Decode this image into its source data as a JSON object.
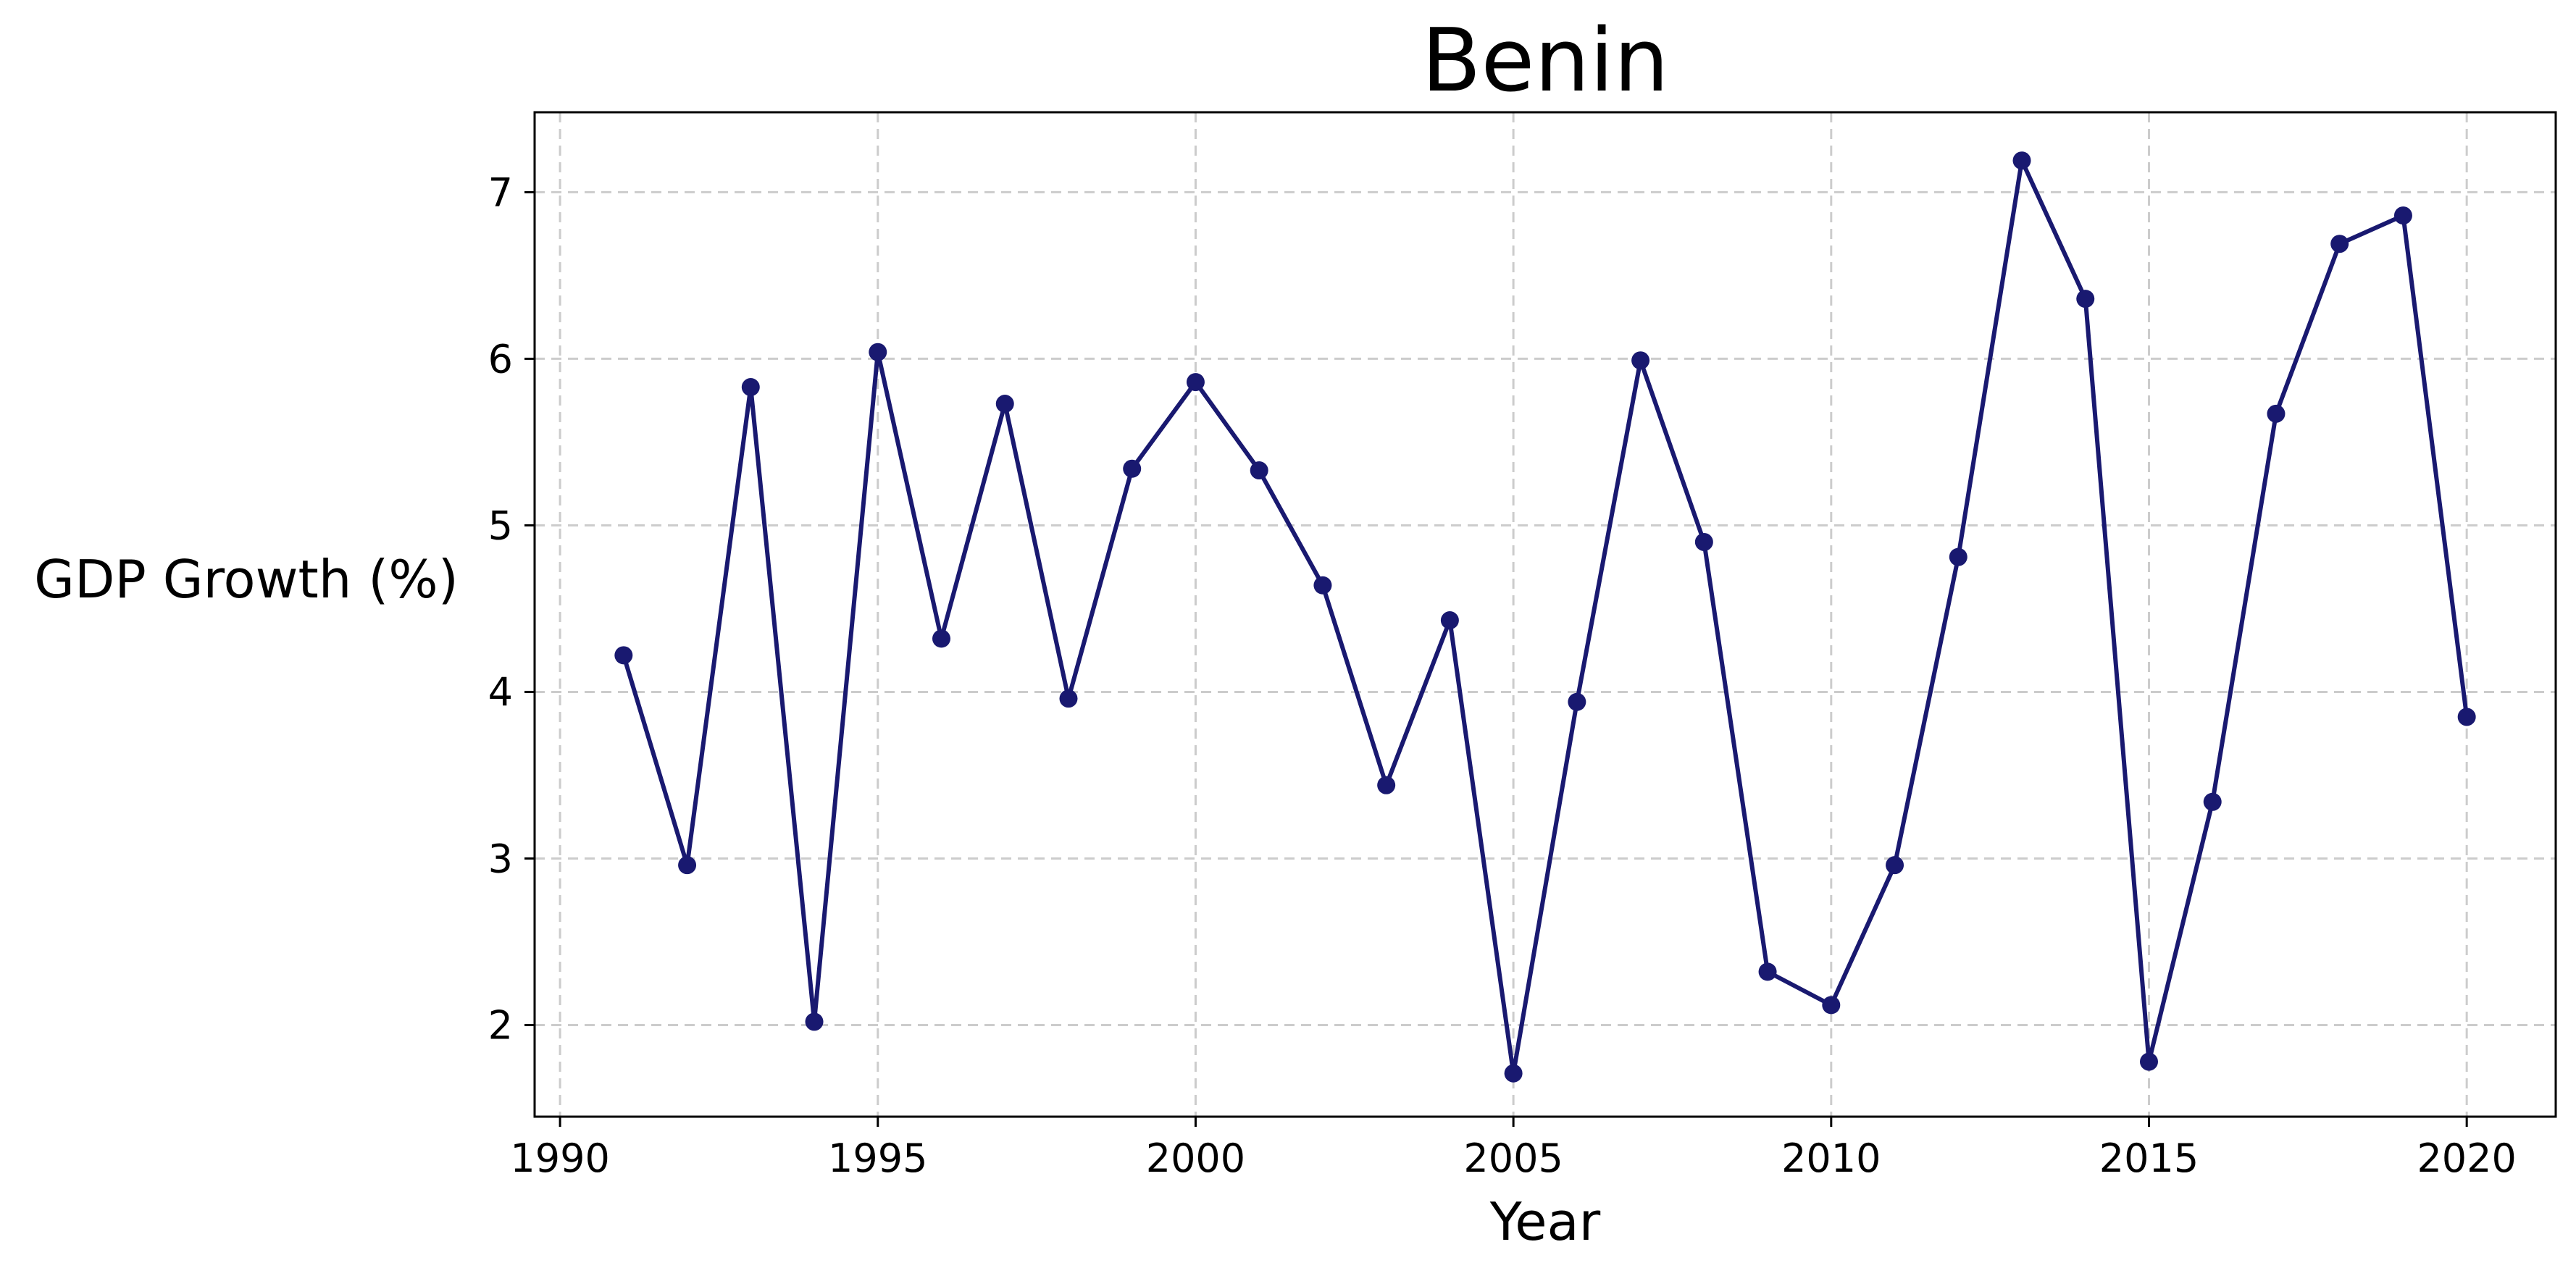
{
  "chart_data": {
    "type": "line",
    "title": "Benin",
    "xlabel": "Year",
    "ylabel": "GDP Growth (%)",
    "xlim": [
      1989.6,
      2021.4
    ],
    "ylim": [
      1.45,
      7.48
    ],
    "grid": true,
    "x_ticks": [
      1990,
      1995,
      2000,
      2005,
      2010,
      2015,
      2020
    ],
    "y_ticks": [
      2,
      3,
      4,
      5,
      6,
      7
    ],
    "colors": {
      "line": "#191970",
      "marker": "#191970",
      "grid": "#cccccc"
    },
    "series": [
      {
        "x": [
          1991,
          1992,
          1993,
          1994,
          1995,
          1996,
          1997,
          1998,
          1999,
          2000,
          2001,
          2002,
          2003,
          2004,
          2005,
          2006,
          2007,
          2008,
          2009,
          2010,
          2011,
          2012,
          2013,
          2014,
          2015,
          2016,
          2017,
          2018,
          2019,
          2020
        ],
        "y": [
          4.22,
          2.96,
          5.83,
          2.02,
          6.04,
          4.32,
          5.73,
          3.96,
          5.34,
          5.86,
          5.33,
          4.64,
          3.44,
          4.43,
          1.71,
          3.94,
          5.99,
          4.9,
          2.32,
          2.12,
          2.96,
          4.81,
          7.19,
          6.36,
          1.78,
          3.34,
          5.67,
          6.69,
          6.86,
          3.85
        ]
      }
    ]
  }
}
